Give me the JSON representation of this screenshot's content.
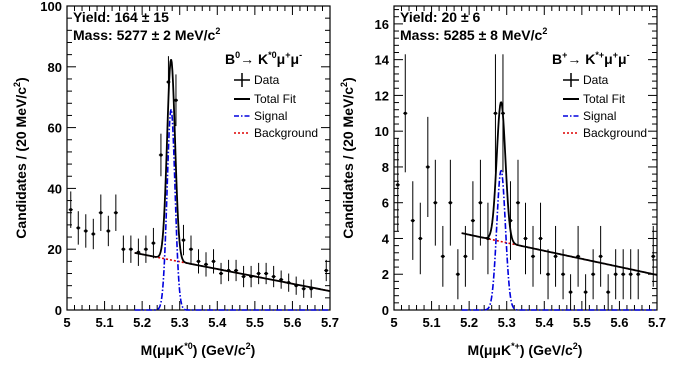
{
  "chart_data": [
    {
      "type": "scatter",
      "panel": "left",
      "title": "",
      "yield_text": "Yield: 164 ± 15",
      "mass_text": "Mass: 5277 ± 2 MeV/c",
      "mass_sup": "2",
      "decay_main": "B",
      "decay_sup1": "0",
      "decay_arrow": "→ K",
      "decay_sup2": "*0",
      "decay_mu1": "μ",
      "decay_sup3": "+",
      "decay_mu2": "μ",
      "decay_sup4": "-",
      "xlabel_main": "M(μμK",
      "xlabel_sup": "*0",
      "xlabel_tail": ") (GeV/c",
      "xlabel_sup2": "2",
      "xlabel_end": ")",
      "ylabel_main": "Candidates / (20 MeV/c",
      "ylabel_sup": "2",
      "ylabel_end": ")",
      "xlim": [
        5.0,
        5.7
      ],
      "ylim": [
        0,
        100
      ],
      "x_ticks": [
        "5",
        "5.1",
        "5.2",
        "5.3",
        "5.4",
        "5.5",
        "5.6",
        "5.7"
      ],
      "y_ticks": [
        "0",
        "20",
        "40",
        "60",
        "80",
        "100"
      ],
      "legend": {
        "data": "Data",
        "total": "Total Fit",
        "signal": "Signal",
        "background": "Background"
      },
      "fit_range": [
        5.18,
        5.7
      ],
      "peak_mean": 5.277,
      "peak_sigma": 0.0105,
      "signal_amplitude": 66,
      "background": {
        "a": 18.8,
        "b": -24.2
      },
      "data_points": [
        {
          "x": 5.01,
          "y": 33,
          "e": 6
        },
        {
          "x": 5.03,
          "y": 27,
          "e": 5.5
        },
        {
          "x": 5.05,
          "y": 26,
          "e": 5.5
        },
        {
          "x": 5.07,
          "y": 25,
          "e": 5
        },
        {
          "x": 5.09,
          "y": 32,
          "e": 6
        },
        {
          "x": 5.11,
          "y": 26,
          "e": 5
        },
        {
          "x": 5.13,
          "y": 32,
          "e": 6
        },
        {
          "x": 5.15,
          "y": 20,
          "e": 4.5
        },
        {
          "x": 5.17,
          "y": 20,
          "e": 4.5
        },
        {
          "x": 5.19,
          "y": 19,
          "e": 4.5
        },
        {
          "x": 5.21,
          "y": 20,
          "e": 4.5
        },
        {
          "x": 5.23,
          "y": 22,
          "e": 5
        },
        {
          "x": 5.25,
          "y": 51,
          "e": 7
        },
        {
          "x": 5.27,
          "y": 75,
          "e": 8.5
        },
        {
          "x": 5.29,
          "y": 69,
          "e": 8.5
        },
        {
          "x": 5.31,
          "y": 23,
          "e": 5
        },
        {
          "x": 5.33,
          "y": 20,
          "e": 4.5
        },
        {
          "x": 5.35,
          "y": 16,
          "e": 4
        },
        {
          "x": 5.37,
          "y": 15,
          "e": 4
        },
        {
          "x": 5.39,
          "y": 16,
          "e": 4
        },
        {
          "x": 5.41,
          "y": 12,
          "e": 3.5
        },
        {
          "x": 5.43,
          "y": 13,
          "e": 3.5
        },
        {
          "x": 5.45,
          "y": 13,
          "e": 3.5
        },
        {
          "x": 5.47,
          "y": 11,
          "e": 3.5
        },
        {
          "x": 5.49,
          "y": 11,
          "e": 3.5
        },
        {
          "x": 5.51,
          "y": 12,
          "e": 3.5
        },
        {
          "x": 5.53,
          "y": 12,
          "e": 3.5
        },
        {
          "x": 5.55,
          "y": 11,
          "e": 3.5
        },
        {
          "x": 5.57,
          "y": 10,
          "e": 3
        },
        {
          "x": 5.59,
          "y": 9,
          "e": 3
        },
        {
          "x": 5.61,
          "y": 8,
          "e": 3
        },
        {
          "x": 5.63,
          "y": 7,
          "e": 3
        },
        {
          "x": 5.65,
          "y": 7,
          "e": 3
        },
        {
          "x": 5.69,
          "y": 13,
          "e": 3.5
        }
      ]
    },
    {
      "type": "scatter",
      "panel": "right",
      "title": "",
      "yield_text": "Yield: 20 ± 6",
      "mass_text": "Mass: 5285 ± 8 MeV/c",
      "mass_sup": "2",
      "decay_main": "B",
      "decay_sup1": "+",
      "decay_arrow": "→ K",
      "decay_sup2": "*+",
      "decay_mu1": "μ",
      "decay_sup3": "+",
      "decay_mu2": "μ",
      "decay_sup4": "-",
      "xlabel_main": "M(μμK",
      "xlabel_sup": "*+",
      "xlabel_tail": ") (GeV/c",
      "xlabel_sup2": "2",
      "xlabel_end": ")",
      "ylabel_main": "Candidates / (20 MeV/c",
      "ylabel_sup": "2",
      "ylabel_end": ")",
      "xlim": [
        5.0,
        5.7
      ],
      "ylim": [
        0,
        17
      ],
      "x_ticks": [
        "5",
        "5.1",
        "5.2",
        "5.3",
        "5.4",
        "5.5",
        "5.6",
        "5.7"
      ],
      "y_ticks": [
        "0",
        "2",
        "4",
        "6",
        "8",
        "10",
        "12",
        "14",
        "16"
      ],
      "legend": {
        "data": "Data",
        "total": "Total Fit",
        "signal": "Signal",
        "background": "Background"
      },
      "fit_range": [
        5.18,
        5.7
      ],
      "peak_mean": 5.285,
      "peak_sigma": 0.0115,
      "signal_amplitude": 7.8,
      "background": {
        "a": 4.3,
        "b": -4.5
      },
      "data_points": [
        {
          "x": 5.01,
          "y": 7,
          "e": 2.6
        },
        {
          "x": 5.03,
          "y": 11,
          "e": 3.3
        },
        {
          "x": 5.05,
          "y": 5,
          "e": 2.2
        },
        {
          "x": 5.07,
          "y": 4,
          "e": 2
        },
        {
          "x": 5.09,
          "y": 8,
          "e": 2.8
        },
        {
          "x": 5.11,
          "y": 6,
          "e": 2.4
        },
        {
          "x": 5.13,
          "y": 3,
          "e": 1.7
        },
        {
          "x": 5.15,
          "y": 6,
          "e": 2.4
        },
        {
          "x": 5.17,
          "y": 2,
          "e": 1.4
        },
        {
          "x": 5.19,
          "y": 3,
          "e": 1.7
        },
        {
          "x": 5.21,
          "y": 5,
          "e": 2.2
        },
        {
          "x": 5.23,
          "y": 6,
          "e": 2.4
        },
        {
          "x": 5.25,
          "y": 4,
          "e": 2
        },
        {
          "x": 5.27,
          "y": 11,
          "e": 3.3
        },
        {
          "x": 5.29,
          "y": 11,
          "e": 3.3
        },
        {
          "x": 5.31,
          "y": 5,
          "e": 2.2
        },
        {
          "x": 5.33,
          "y": 6,
          "e": 2.4
        },
        {
          "x": 5.35,
          "y": 4,
          "e": 2
        },
        {
          "x": 5.37,
          "y": 3,
          "e": 1.7
        },
        {
          "x": 5.39,
          "y": 4,
          "e": 2
        },
        {
          "x": 5.41,
          "y": 2,
          "e": 1.4
        },
        {
          "x": 5.43,
          "y": 3,
          "e": 1.7
        },
        {
          "x": 5.45,
          "y": 2,
          "e": 1.4
        },
        {
          "x": 5.47,
          "y": 1,
          "e": 1
        },
        {
          "x": 5.49,
          "y": 3,
          "e": 1.7
        },
        {
          "x": 5.51,
          "y": 1,
          "e": 1
        },
        {
          "x": 5.53,
          "y": 2,
          "e": 1.4
        },
        {
          "x": 5.55,
          "y": 3,
          "e": 1.7
        },
        {
          "x": 5.57,
          "y": 1,
          "e": 1
        },
        {
          "x": 5.59,
          "y": 2,
          "e": 1.4
        },
        {
          "x": 5.61,
          "y": 2,
          "e": 1.4
        },
        {
          "x": 5.63,
          "y": 2,
          "e": 1.4
        },
        {
          "x": 5.65,
          "y": 2,
          "e": 1.4
        },
        {
          "x": 5.69,
          "y": 3,
          "e": 1.7
        }
      ]
    }
  ],
  "colors": {
    "data": "#000000",
    "total": "#000000",
    "signal": "#0000dd",
    "background": "#dd0000"
  }
}
